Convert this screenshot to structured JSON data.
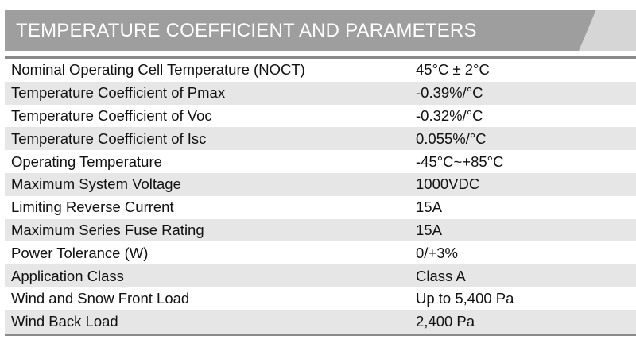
{
  "header": {
    "title": "TEMPERATURE COEFFICIENT AND PARAMETERS",
    "background_color": "#9e9e9e",
    "accent_color": "#d6d6d6"
  },
  "table": {
    "rows": [
      {
        "label": "Nominal Operating Cell Temperature (NOCT)",
        "value": "45°C ± 2°C"
      },
      {
        "label": "Temperature Coefficient of Pmax",
        "value": "-0.39%/°C"
      },
      {
        "label": "Temperature Coefficient of Voc",
        "value": "-0.32%/°C"
      },
      {
        "label": "Temperature Coefficient of Isc",
        "value": "0.055%/°C"
      },
      {
        "label": "Operating Temperature",
        "value": "-45°C~+85°C"
      },
      {
        "label": "Maximum System Voltage",
        "value": "1000VDC"
      },
      {
        "label": "Limiting Reverse Current",
        "value": "15A"
      },
      {
        "label": "Maximum Series Fuse Rating",
        "value": "15A"
      },
      {
        "label": "Power Tolerance (W)",
        "value": "0/+3%"
      },
      {
        "label": "Application Class",
        "value": "Class A"
      },
      {
        "label": "Wind and Snow Front Load",
        "value": "Up to 5,400 Pa"
      },
      {
        "label": "Wind Back Load",
        "value": "2,400 Pa"
      }
    ]
  }
}
